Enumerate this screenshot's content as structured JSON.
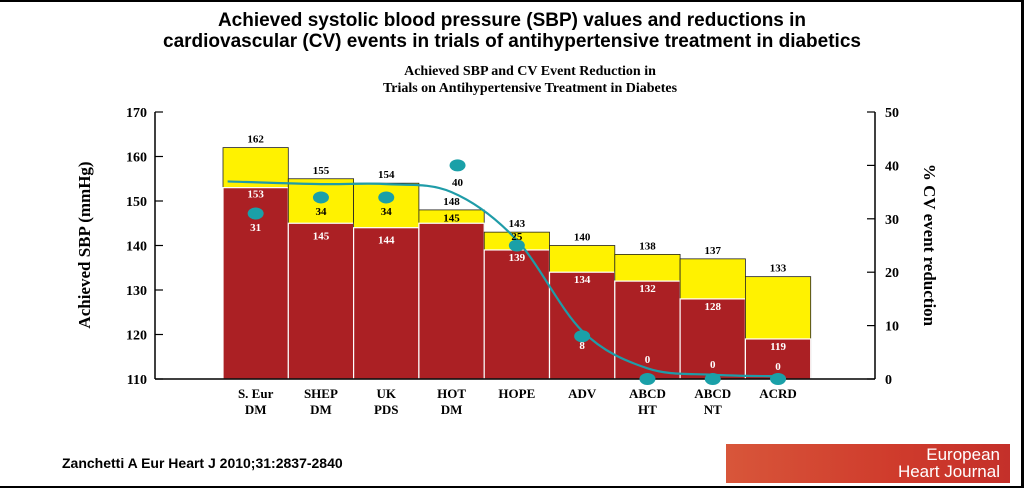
{
  "slide": {
    "title_line1": "Achieved systolic blood pressure (SBP) values and reductions in",
    "title_line2": "cardiovascular (CV) events in trials of antihypertensive treatment in diabetics",
    "citation": "Zanchetti A Eur Heart J 2010;31:2837-2840",
    "logo_line1": "European",
    "logo_line2": "Heart Journal"
  },
  "chart_data": {
    "type": "bar",
    "title_line1": "Achieved SBP and  CV Event  Reduction in",
    "title_line2": "Trials on Antihypertensive Treatment in Diabetes",
    "ylabel": "Achieved SBP (mmHg)",
    "y2label": "% CV event reduction",
    "ylim": [
      110,
      170
    ],
    "yticks": [
      "110",
      "120",
      "130",
      "140",
      "150",
      "160",
      "170"
    ],
    "y2lim": [
      0,
      50
    ],
    "y2ticks": [
      "0",
      "10",
      "20",
      "30",
      "40",
      "50"
    ],
    "categories": [
      [
        "S. Eur",
        "DM"
      ],
      [
        "SHEP",
        "DM"
      ],
      [
        "UK",
        "PDS"
      ],
      [
        "HOT",
        "DM"
      ],
      [
        "HOPE"
      ],
      [
        "ADV"
      ],
      [
        "ABCD",
        "HT"
      ],
      [
        "ABCD",
        "NT"
      ],
      [
        "ACRD"
      ]
    ],
    "series": [
      {
        "type": "bar",
        "color": "#ab2024",
        "values": [
          153,
          145,
          144,
          145,
          139,
          134,
          132,
          128,
          119
        ],
        "labels": [
          "153",
          "145",
          "144",
          "145",
          "139",
          "134",
          "132",
          "128",
          "119"
        ]
      },
      {
        "type": "bar",
        "color": "#fff200",
        "values": [
          162,
          155,
          154,
          148,
          143,
          140,
          138,
          137,
          133
        ],
        "labels": [
          "162",
          "155",
          "154",
          "148",
          "143",
          "140",
          "138",
          "137",
          "133"
        ]
      },
      {
        "type": "scatter",
        "axis": "right",
        "color": "#1aa0a8",
        "values": [
          31,
          34,
          34,
          40,
          25,
          8,
          0,
          0,
          0
        ],
        "labels": [
          "31",
          "34",
          "34",
          "40",
          "25",
          "8",
          "0",
          "0",
          "0"
        ]
      }
    ],
    "trend_line": {
      "color": "#1f9ca8",
      "y": [
        37,
        36.5,
        36.5,
        35,
        26,
        9,
        2,
        0.8,
        0.5
      ]
    }
  }
}
